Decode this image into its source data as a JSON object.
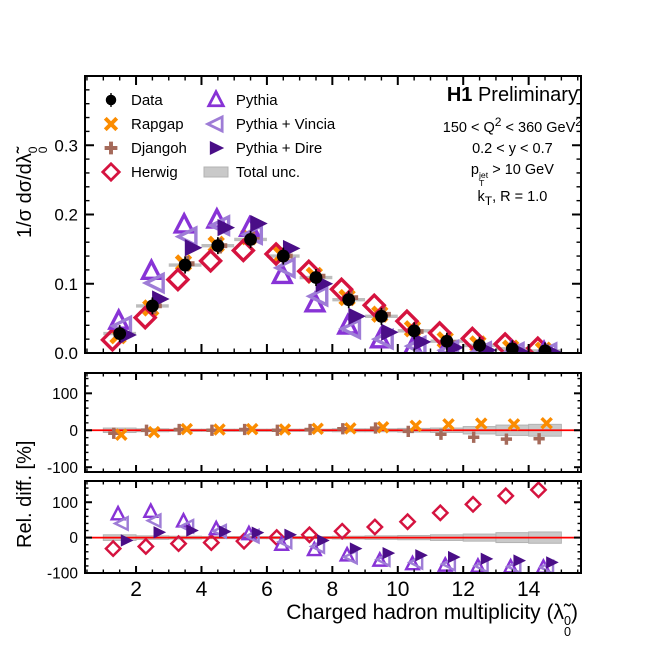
{
  "title": {
    "experiment": "H1",
    "rest": " Preliminary"
  },
  "conditions": {
    "q2": {
      "pre": "150 < Q",
      "sup1": "2",
      "mid": " < 360 GeV",
      "sup2": "2"
    },
    "y_cut": "0.2 < y < 0.7",
    "pt": {
      "pre": "p",
      "sup": "jet",
      "sub": "T",
      "post": " > 10 GeV"
    },
    "kt": {
      "pre": "k",
      "sub": "T",
      "post": ", R = 1.0"
    }
  },
  "legend": {
    "col1": [
      {
        "label": "Data",
        "marker": "data",
        "color": "#000000"
      },
      {
        "label": "Rapgap",
        "marker": "xcross",
        "color": "#FB8C00"
      },
      {
        "label": "Djangoh",
        "marker": "plus",
        "color": "#A56A5A"
      },
      {
        "label": "Herwig",
        "marker": "diamond",
        "color": "#D5133F"
      }
    ],
    "col2": [
      {
        "label": "Pythia",
        "marker": "triangle-up",
        "color": "#8833D6"
      },
      {
        "label": "Pythia + Vincia",
        "marker": "triangle-left",
        "color": "#9E7CD6"
      },
      {
        "label": "Pythia + Dire",
        "marker": "triangle-right",
        "color": "#4A0E87"
      },
      {
        "label": "Total unc.",
        "marker": "band",
        "color": "#C9C9C9"
      }
    ]
  },
  "axes": {
    "x": {
      "label": {
        "pre": "Charged hadron multiplicity (λ̃",
        "sup": "0",
        "sub": "0",
        "post": ")"
      },
      "lim": [
        0.44,
        15.6
      ],
      "ticks": [
        2,
        4,
        6,
        8,
        10,
        12,
        14
      ],
      "tick_labels": [
        "2",
        "4",
        "6",
        "8",
        "10",
        "12",
        "14"
      ],
      "minor_step": 0.5
    },
    "y_main": {
      "label": {
        "pre": "1/σ dσ/dλ̃",
        "sup": "0",
        "sub": "0"
      }
    },
    "y_ratio": {
      "label": "Rel. diff. [%]"
    }
  },
  "chart_data": [
    {
      "type": "scatter",
      "panel": "main",
      "x": [
        1.5,
        2.5,
        3.5,
        4.5,
        5.5,
        6.5,
        7.5,
        8.5,
        9.5,
        10.5,
        11.5,
        12.5,
        13.5,
        14.5
      ],
      "ylim": [
        0,
        0.4
      ],
      "yticks": [
        0,
        0.1,
        0.2,
        0.3
      ],
      "ytick_labels": [
        "0.0",
        "0.1",
        "0.2",
        "0.3"
      ],
      "yminor_step": 0.02,
      "series": [
        {
          "name": "Rapgap",
          "marker": "xcross",
          "color": "#FB8C00",
          "dx": -0.05,
          "values": [
            0.025,
            0.065,
            0.13,
            0.157,
            0.168,
            0.142,
            0.112,
            0.08,
            0.056,
            0.035,
            0.019,
            0.013,
            0.007,
            0.004
          ]
        },
        {
          "name": "Djangoh",
          "marker": "plus",
          "color": "#A56A5A",
          "dx": 0.05,
          "values": [
            0.026,
            0.068,
            0.129,
            0.155,
            0.167,
            0.14,
            0.111,
            0.08,
            0.056,
            0.031,
            0.015,
            0.009,
            0.005,
            0.002
          ]
        },
        {
          "name": "Herwig",
          "marker": "diamond",
          "color": "#D5133F",
          "dx": -0.22,
          "values": [
            0.019,
            0.051,
            0.106,
            0.133,
            0.148,
            0.143,
            0.118,
            0.092,
            0.069,
            0.046,
            0.029,
            0.021,
            0.013,
            0.007
          ]
        },
        {
          "name": "Pythia",
          "marker": "triangle-up",
          "color": "#8833D6",
          "dx": -0.03,
          "values": [
            0.046,
            0.118,
            0.185,
            0.192,
            0.18,
            0.112,
            0.071,
            0.039,
            0.019,
            0.008,
            0.004,
            0.002,
            0.001,
            0.0005
          ]
        },
        {
          "name": "Pythia + Vincia",
          "marker": "triangle-left",
          "color": "#9E7CD6",
          "dx": 0.1,
          "values": [
            0.039,
            0.101,
            0.168,
            0.184,
            0.171,
            0.123,
            0.082,
            0.035,
            0.02,
            0.01,
            0.004,
            0.002,
            0.001,
            0.0005
          ]
        },
        {
          "name": "Pythia + Dire",
          "marker": "triangle-right",
          "color": "#4A0E87",
          "dx": 0.22,
          "values": [
            0.026,
            0.078,
            0.152,
            0.181,
            0.187,
            0.151,
            0.1,
            0.053,
            0.03,
            0.016,
            0.008,
            0.004,
            0.002,
            0.001
          ]
        },
        {
          "name": "Data",
          "marker": "data",
          "color": "#000000",
          "dx": 0,
          "binbars": true,
          "values": [
            0.028,
            0.068,
            0.127,
            0.155,
            0.164,
            0.14,
            0.109,
            0.077,
            0.053,
            0.032,
            0.017,
            0.011,
            0.006,
            0.003
          ]
        }
      ]
    },
    {
      "type": "scatter",
      "panel": "middle",
      "x": [
        1.5,
        2.5,
        3.5,
        4.5,
        5.5,
        6.5,
        7.5,
        8.5,
        9.5,
        10.5,
        11.5,
        12.5,
        13.5,
        14.5
      ],
      "ylim": [
        -113,
        155
      ],
      "yticks": [
        100,
        0,
        -100
      ],
      "ytick_labels": [
        "100",
        "0",
        "-100"
      ],
      "yminor_step": 20,
      "zero_line": "#FF0000",
      "unc_band": [
        6,
        4,
        3,
        3,
        3,
        3,
        3,
        4,
        4,
        5,
        6,
        10,
        14,
        16
      ],
      "series": [
        {
          "name": "Djangoh",
          "marker": "plus",
          "color": "#A56A5A",
          "dx": -0.18,
          "values": [
            -8,
            0,
            2,
            0,
            2,
            0,
            2,
            4,
            6,
            -3,
            -11,
            -19,
            -24,
            -23
          ]
        },
        {
          "name": "Rapgap",
          "marker": "xcross",
          "color": "#FB8C00",
          "dx": 0.05,
          "values": [
            -12,
            -5,
            3,
            2,
            3,
            2,
            4,
            5,
            8,
            12,
            16,
            18,
            16,
            19
          ]
        }
      ]
    },
    {
      "type": "scatter",
      "panel": "bottom",
      "x": [
        1.5,
        2.5,
        3.5,
        4.5,
        5.5,
        6.5,
        7.5,
        8.5,
        9.5,
        10.5,
        11.5,
        12.5,
        13.5,
        14.5
      ],
      "ylim": [
        -100,
        160
      ],
      "yticks": [
        100,
        0,
        -100
      ],
      "ytick_labels": [
        "100",
        "0",
        "-100"
      ],
      "yminor_step": 20,
      "zero_line": "#FF0000",
      "unc_band": [
        8,
        5,
        4,
        3,
        3,
        3,
        3,
        4,
        5,
        6,
        8,
        10,
        14,
        16
      ],
      "xtick_labels": true,
      "series": [
        {
          "name": "Herwig",
          "marker": "diamond",
          "color": "#D5133F",
          "dx": -0.2,
          "values": [
            -31,
            -25,
            -17,
            -14,
            -10,
            0,
            8,
            18,
            30,
            45,
            70,
            94,
            118,
            135
          ]
        },
        {
          "name": "Pythia",
          "marker": "triangle-up",
          "color": "#8833D6",
          "dx": -0.05,
          "values": [
            66,
            73,
            46,
            24,
            10,
            -20,
            -35,
            -50,
            -65,
            -75,
            -79,
            -82,
            -84,
            -85
          ]
        },
        {
          "name": "Pythia + Vincia",
          "marker": "triangle-left",
          "color": "#9E7CD6",
          "dx": 0.08,
          "values": [
            40,
            48,
            32,
            18,
            4,
            -12,
            -25,
            -55,
            -62,
            -70,
            -75,
            -80,
            -82,
            -84
          ]
        },
        {
          "name": "Pythia + Dire",
          "marker": "triangle-right",
          "color": "#4A0E87",
          "dx": 0.2,
          "values": [
            -8,
            15,
            20,
            17,
            14,
            8,
            -8,
            -31,
            -44,
            -50,
            -55,
            -60,
            -65,
            -70
          ]
        }
      ]
    }
  ]
}
